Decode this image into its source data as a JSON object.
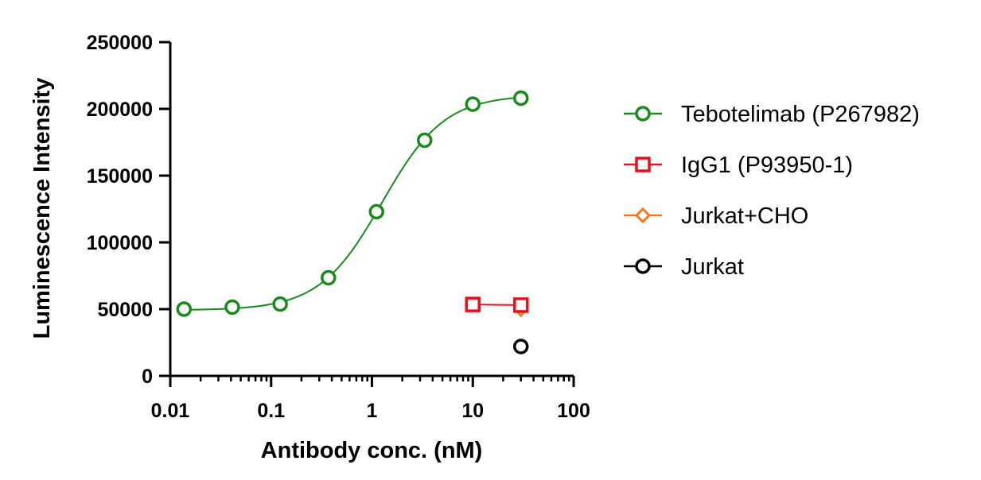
{
  "chart_data": {
    "type": "scatter",
    "title": "",
    "xlabel": "Antibody conc. (nM)",
    "ylabel": "Luminescence Intensity",
    "xscale": "log",
    "xlim": [
      0.01,
      100
    ],
    "ylim": [
      0,
      250000
    ],
    "x_ticks": [
      0.01,
      0.1,
      1,
      10,
      100
    ],
    "x_tick_labels": [
      "0.01",
      "0.1",
      "1",
      "10",
      "100"
    ],
    "y_ticks": [
      0,
      50000,
      100000,
      150000,
      200000,
      250000
    ],
    "y_tick_labels": [
      "0",
      "50000",
      "100000",
      "150000",
      "200000",
      "250000"
    ],
    "grid": false,
    "legend_position": "right",
    "series": [
      {
        "name": "Tebotelimab (P267982)",
        "color": "#1a8a1a",
        "marker": "circle",
        "fit": "sigmoid",
        "x": [
          0.0137,
          0.0412,
          0.123,
          0.37,
          1.11,
          3.33,
          10,
          30
        ],
        "y": [
          50000,
          51500,
          53800,
          73500,
          123000,
          176500,
          203500,
          208000
        ]
      },
      {
        "name": "IgG1 (P93950-1)",
        "color": "#e8101a",
        "marker": "square",
        "fit": "line",
        "x": [
          10,
          30
        ],
        "y": [
          53500,
          53000
        ]
      },
      {
        "name": "Jurkat+CHO",
        "color": "#f07a1a",
        "marker": "diamond",
        "fit": "none",
        "x": [
          30
        ],
        "y": [
          50000
        ]
      },
      {
        "name": "Jurkat",
        "color": "#000000",
        "marker": "circle",
        "fit": "none",
        "x": [
          30
        ],
        "y": [
          22000
        ]
      }
    ]
  }
}
